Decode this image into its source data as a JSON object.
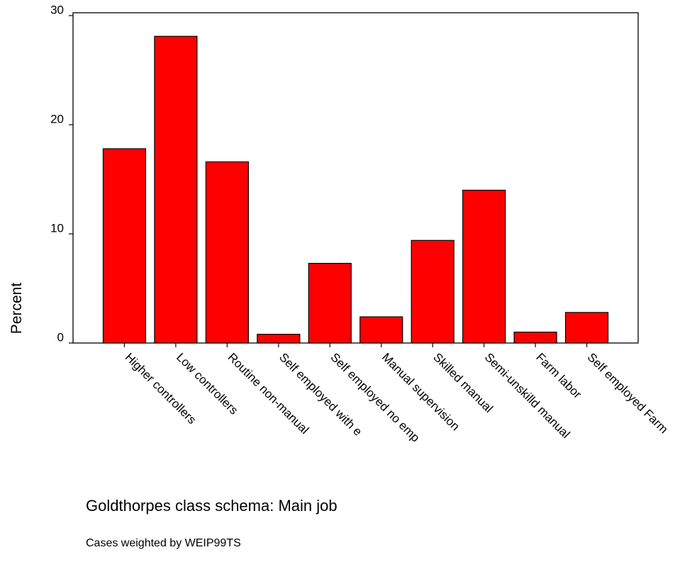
{
  "chart_data": {
    "type": "bar",
    "title": "Goldthorpes class schema: Main job",
    "note": "Cases weighted by WEIP99TS",
    "y_label": "Percent",
    "categories": [
      "Higher controllers",
      "Low controllers",
      "Routine non-manual",
      "Self employed with e",
      "Self employed no emp",
      "Manual supervision",
      "Skilled manual",
      "Semi-unskilld manual",
      "Farm labor",
      "Self employed Farm"
    ],
    "values": [
      17.8,
      28.1,
      16.6,
      0.8,
      7.3,
      2.4,
      9.4,
      14.0,
      1.0,
      2.8
    ],
    "color": "#ff0000",
    "ylim": [
      0,
      30
    ],
    "yticks": [
      0,
      10,
      20,
      30
    ],
    "grid": false
  }
}
